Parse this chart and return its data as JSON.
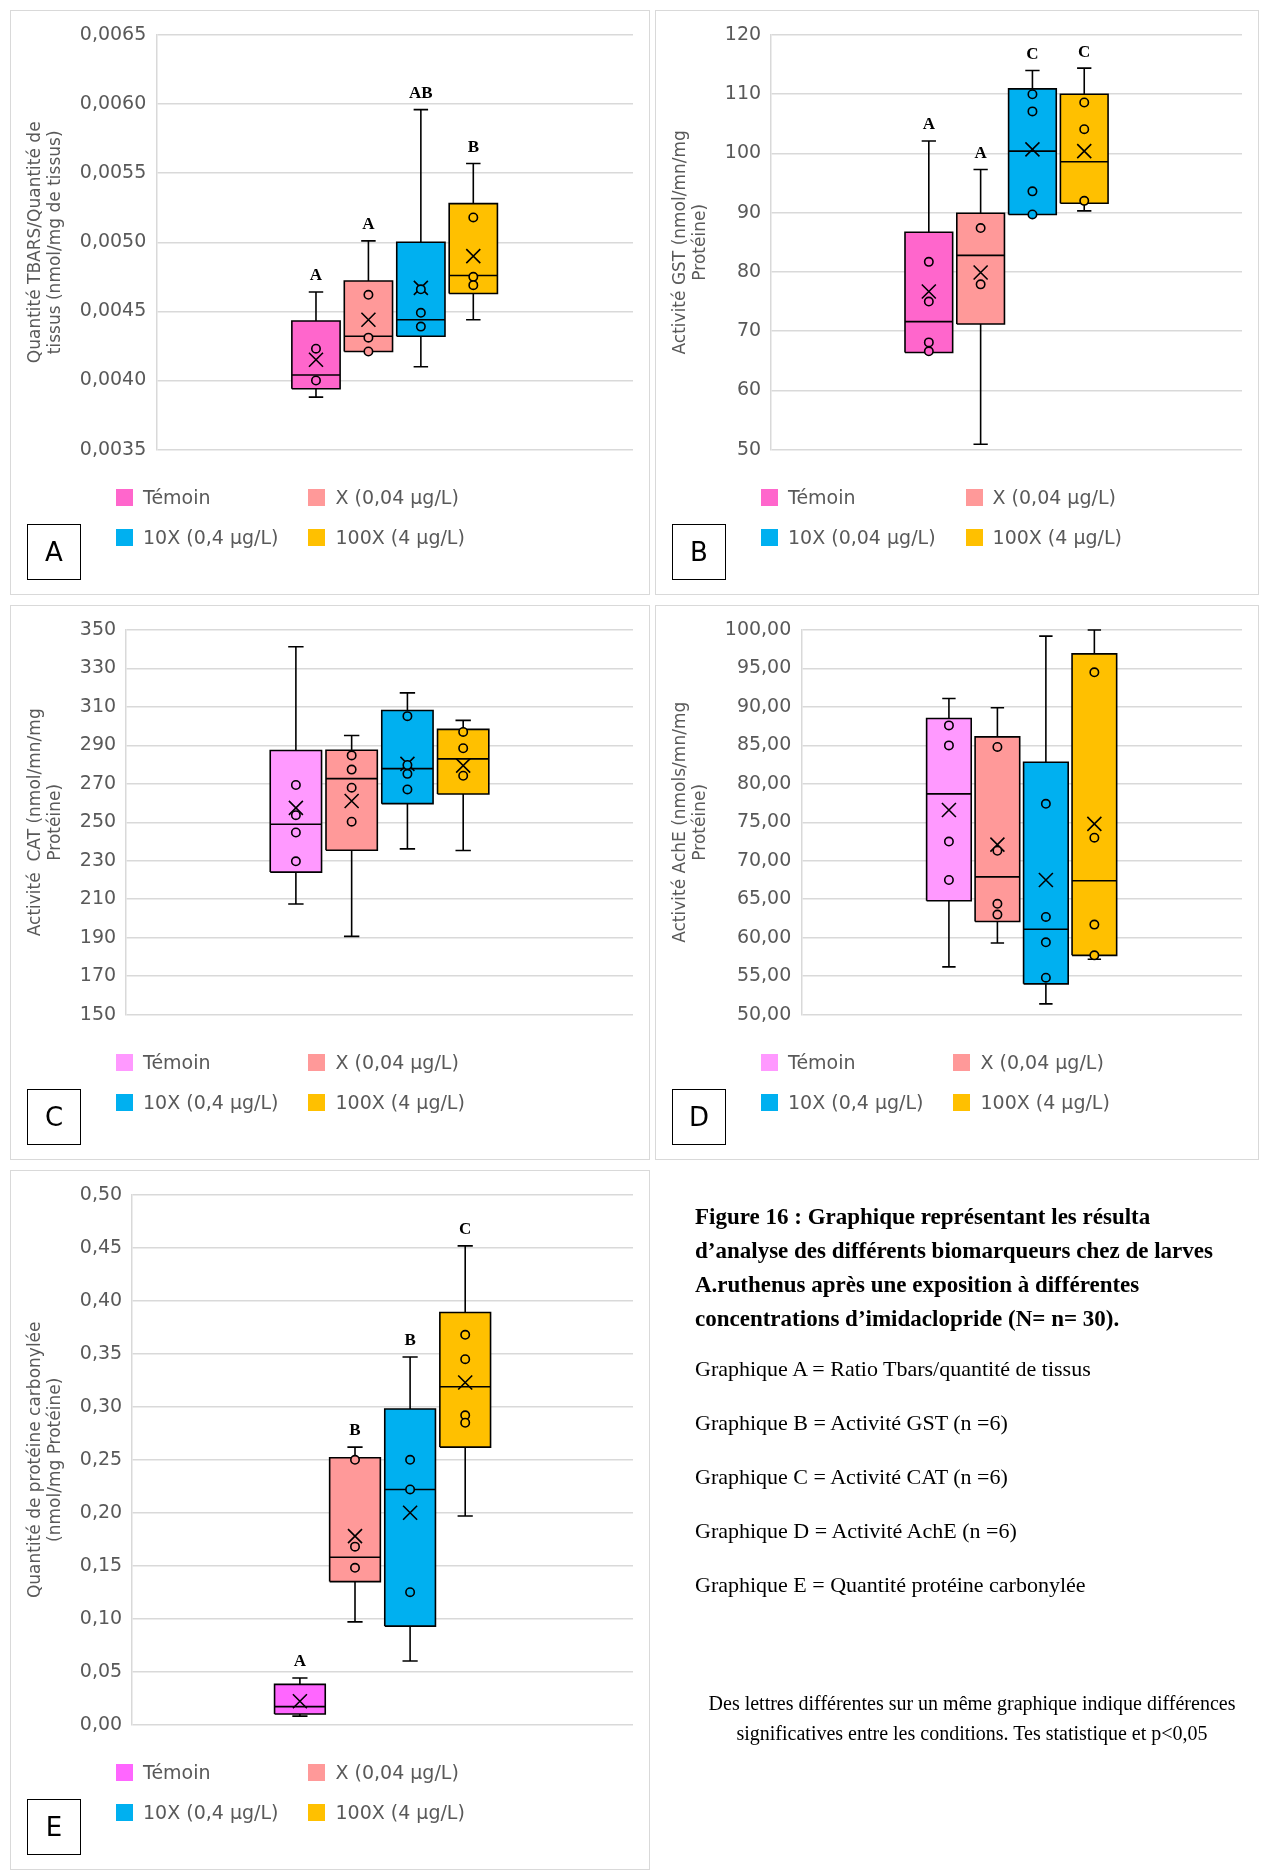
{
  "chart_data": [
    {
      "type": "box",
      "ylabel": "Quantité TBARS/Quantité de tissus (nmol/mg de tissus)",
      "categories": [
        null
      ],
      "ylim": [
        0.0035,
        0.0065
      ],
      "yticks": [
        {
          "value": 0.0035,
          "label": "0,0035"
        },
        {
          "value": 0.004,
          "label": "0,0040"
        },
        {
          "value": 0.0045,
          "label": "0,0045"
        },
        {
          "value": 0.005,
          "label": "0,0050"
        },
        {
          "value": 0.0055,
          "label": "0,0055"
        },
        {
          "value": 0.006,
          "label": "0,0060"
        },
        {
          "value": 0.0065,
          "label": "0,0065"
        }
      ],
      "grid": "y",
      "tick_labels": "y",
      "legend": "bottom",
      "series": [
        {
          "name": "Témoin",
          "color": "#ff66cc",
          "boxes": [
            {
              "low": 0.00388,
              "q1": 0.00394,
              "median": 0.00404,
              "q3": 0.00443,
              "high": 0.00464,
              "mean": 0.00415,
              "outliers": [
                0.00423,
                0.004
              ]
            }
          ]
        },
        {
          "name": "X (0,04 µg/L)",
          "color": "#ff9999",
          "boxes": [
            {
              "low": 0.00421,
              "q1": 0.00421,
              "median": 0.00432,
              "q3": 0.00472,
              "high": 0.00501,
              "mean": 0.00444,
              "outliers": [
                0.00462,
                0.00431,
                0.00421
              ]
            }
          ]
        },
        {
          "name": "10X (0,4 µg/L)",
          "color": "#00b0f0",
          "boxes": [
            {
              "low": 0.0041,
              "q1": 0.00432,
              "median": 0.00444,
              "q3": 0.005,
              "high": 0.00596,
              "mean": 0.00467,
              "outliers": [
                0.00466,
                0.00449,
                0.00439
              ]
            }
          ]
        },
        {
          "name": "100X (4 µg/L)",
          "color": "#ffc000",
          "boxes": [
            {
              "low": 0.00444,
              "q1": 0.00463,
              "median": 0.00476,
              "q3": 0.00528,
              "high": 0.00557,
              "mean": 0.0049,
              "outliers": [
                0.00518,
                0.00475,
                0.00469
              ]
            }
          ]
        }
      ],
      "annotations": [
        "A",
        "A",
        "AB",
        "B",
        "A"
      ]
    },
    {
      "type": "box",
      "ylabel": "Activité GST (nmol/mn/mg Protéine)",
      "categories": [
        null
      ],
      "ylim": [
        50,
        120
      ],
      "yticks": [
        50,
        60,
        70,
        80,
        90,
        100,
        110,
        120
      ],
      "grid": "y",
      "tick_labels": "y",
      "legend": "bottom",
      "series": [
        {
          "name": "Témoin",
          "color": "#ff66cc",
          "boxes": [
            {
              "low": 66.4,
              "q1": 66.4,
              "median": 71.6,
              "q3": 86.7,
              "high": 102.1,
              "mean": 76.7,
              "outliers": [
                81.7,
                75.0,
                68.1,
                66.6
              ]
            }
          ]
        },
        {
          "name": "X (0,04 µg/L)",
          "color": "#ff9999",
          "boxes": [
            {
              "low": 50.9,
              "q1": 71.2,
              "median": 82.8,
              "q3": 89.9,
              "high": 97.3,
              "mean": 79.9,
              "outliers": [
                87.4,
                77.9
              ]
            }
          ]
        },
        {
          "name": "10X (0,04 µg/L)",
          "color": "#00b0f0",
          "boxes": [
            {
              "low": 89.7,
              "q1": 89.7,
              "median": 100.4,
              "q3": 110.9,
              "high": 114.0,
              "mean": 100.7,
              "outliers": [
                110.0,
                107.1,
                93.6,
                89.7
              ]
            }
          ]
        },
        {
          "name": "100X (4 µg/L)",
          "color": "#ffc000",
          "boxes": [
            {
              "low": 90.3,
              "q1": 91.6,
              "median": 98.6,
              "q3": 110.0,
              "high": 114.4,
              "mean": 100.4,
              "outliers": [
                108.6,
                104.1,
                92.0
              ]
            }
          ]
        }
      ],
      "annotations": [
        "A",
        "A",
        "C",
        "C",
        "B"
      ]
    },
    {
      "type": "box",
      "ylabel": "Activité  CAT (nmol/mn/mg Protéine)",
      "categories": [
        null
      ],
      "ylim": [
        150,
        350
      ],
      "yticks": [
        150,
        170,
        190,
        210,
        230,
        250,
        270,
        290,
        310,
        330,
        350
      ],
      "grid": "y",
      "tick_labels": "y",
      "legend": "bottom",
      "series": [
        {
          "name": "Témoin",
          "color": "#ff99ff",
          "boxes": [
            {
              "low": 207.5,
              "q1": 224.1,
              "median": 249.0,
              "q3": 287.3,
              "high": 341.3,
              "mean": 257.5,
              "outliers": [
                269.4,
                253.7,
                244.7,
                229.7
              ]
            }
          ]
        },
        {
          "name": "X (0,04 µg/L)",
          "color": "#ff9999",
          "boxes": [
            {
              "low": 190.7,
              "q1": 235.5,
              "median": 272.7,
              "q3": 287.5,
              "high": 295.1,
              "mean": 261.1,
              "outliers": [
                284.8,
                277.4,
                268.0,
                250.3
              ]
            }
          ]
        },
        {
          "name": "10X (0,4 µg/L)",
          "color": "#00b0f0",
          "boxes": [
            {
              "low": 236.2,
              "q1": 259.7,
              "median": 277.9,
              "q3": 308.1,
              "high": 317.3,
              "mean": 280.4,
              "outliers": [
                305.2,
                279.8,
                275.2,
                267.1
              ]
            }
          ]
        },
        {
          "name": "100X (4 µg/L)",
          "color": "#ffc000",
          "boxes": [
            {
              "low": 235.3,
              "q1": 264.7,
              "median": 283.0,
              "q3": 298.3,
              "high": 303.0,
              "mean": 279.5,
              "outliers": [
                297.0,
                288.5,
                274.2
              ]
            }
          ]
        }
      ],
      "annotations": [
        "C"
      ]
    },
    {
      "type": "box",
      "ylabel": "Activité AchE (nmols/mn/mg Protéine)",
      "categories": [
        null
      ],
      "ylim": [
        50,
        100
      ],
      "yticks": [
        {
          "value": 50,
          "label": "50,00"
        },
        {
          "value": 55,
          "label": "55,00"
        },
        {
          "value": 60,
          "label": "60,00"
        },
        {
          "value": 65,
          "label": "65,00"
        },
        {
          "value": 70,
          "label": "70,00"
        },
        {
          "value": 75,
          "label": "75,00"
        },
        {
          "value": 80,
          "label": "80,00"
        },
        {
          "value": 85,
          "label": "85,00"
        },
        {
          "value": 90,
          "label": "90,00"
        },
        {
          "value": 95,
          "label": "95,00"
        },
        {
          "value": 100,
          "label": "100,00"
        }
      ],
      "grid": "y",
      "tick_labels": "y",
      "legend": "bottom",
      "series": [
        {
          "name": "Témoin",
          "color": "#ff99ff",
          "boxes": [
            {
              "low": 56.2,
              "q1": 64.8,
              "median": 78.7,
              "q3": 88.5,
              "high": 91.1,
              "mean": 76.6,
              "outliers": [
                87.6,
                85.0,
                72.5,
                67.5
              ]
            }
          ]
        },
        {
          "name": "X (0,04 µg/L)",
          "color": "#ff9999",
          "boxes": [
            {
              "low": 59.3,
              "q1": 62.1,
              "median": 67.9,
              "q3": 86.1,
              "high": 89.9,
              "mean": 72.1,
              "outliers": [
                84.8,
                71.3,
                64.4,
                63.0
              ]
            }
          ]
        },
        {
          "name": "10X (0,4 µg/L)",
          "color": "#00b0f0",
          "boxes": [
            {
              "low": 51.4,
              "q1": 54.0,
              "median": 61.1,
              "q3": 82.8,
              "high": 99.2,
              "mean": 67.5,
              "outliers": [
                77.4,
                62.7,
                59.4,
                54.8
              ]
            }
          ]
        },
        {
          "name": "100X (4 µg/L)",
          "color": "#ffc000",
          "boxes": [
            {
              "low": 57.2,
              "q1": 57.7,
              "median": 67.4,
              "q3": 96.9,
              "high": 100,
              "mean": 74.8,
              "outliers": [
                94.5,
                73.0,
                61.7,
                57.7
              ]
            }
          ]
        }
      ],
      "annotations": [
        "D"
      ]
    },
    {
      "type": "box",
      "ylabel": "Quantité de protéine carbonylée (nmol/mg Protéine)",
      "categories": [
        null
      ],
      "ylim": [
        0,
        0.5
      ],
      "yticks": [
        {
          "value": 0,
          "label": "0,00"
        },
        {
          "value": 0.05,
          "label": "0,05"
        },
        {
          "value": 0.1,
          "label": "0,10"
        },
        {
          "value": 0.15,
          "label": "0,15"
        },
        {
          "value": 0.2,
          "label": "0,20"
        },
        {
          "value": 0.25,
          "label": "0,25"
        },
        {
          "value": 0.3,
          "label": "0,30"
        },
        {
          "value": 0.35,
          "label": "0,35"
        },
        {
          "value": 0.4,
          "label": "0,40"
        },
        {
          "value": 0.45,
          "label": "0,45"
        },
        {
          "value": 0.5,
          "label": "0,50"
        }
      ],
      "grid": "y",
      "tick_labels": "y",
      "legend": "bottom",
      "series": [
        {
          "name": "Témoin",
          "color": "#ff66ff",
          "boxes": [
            {
              "low": 0.008,
              "q1": 0.01,
              "median": 0.017,
              "q3": 0.038,
              "high": 0.044,
              "mean": 0.022
            }
          ]
        },
        {
          "name": "X (0,04 µg/L)",
          "color": "#ff9999",
          "boxes": [
            {
              "low": 0.097,
              "q1": 0.135,
              "median": 0.158,
              "q3": 0.252,
              "high": 0.262,
              "mean": 0.178,
              "outliers": [
                0.25,
                0.168,
                0.148
              ]
            }
          ]
        },
        {
          "name": "10X (0,4 µg/L)",
          "color": "#00b0f0",
          "boxes": [
            {
              "low": 0.06,
              "q1": 0.093,
              "median": 0.222,
              "q3": 0.298,
              "high": 0.347,
              "mean": 0.2,
              "outliers": [
                0.25,
                0.222,
                0.125
              ]
            }
          ]
        },
        {
          "name": "100X (4 µg/L)",
          "color": "#ffc000",
          "boxes": [
            {
              "low": 0.197,
              "q1": 0.262,
              "median": 0.319,
              "q3": 0.389,
              "high": 0.452,
              "mean": 0.323,
              "outliers": [
                0.368,
                0.345,
                0.292,
                0.285
              ]
            }
          ]
        }
      ],
      "annotations": [
        "A",
        "B",
        "B",
        "C",
        "E"
      ]
    },
    {
      "type": "other",
      "title": "Figure 16 : Graphique représentant les résulta d’analyse des différents biomarqueurs chez de larves A.ruthenus après une exposition à différentes concentrations d’imidaclopride (N= n= 30).",
      "annotations": [
        "Graphique A = Ratio Tbars/quantité de tissus",
        "Graphique B = Activité GST (n =6)",
        "Graphique C = Activité CAT (n =6)",
        "Graphique D = Activité AchE (n =6)",
        "Graphique E = Quantité protéine carbonylée",
        "Des lettres différentes sur un même graphique indique différences significatives entre les conditions. Tes statistique et p<0,05"
      ]
    }
  ]
}
